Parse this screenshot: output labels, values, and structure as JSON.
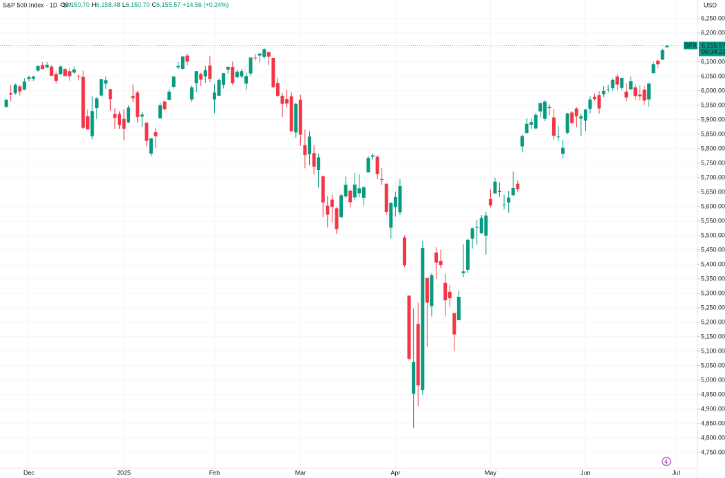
{
  "chart_data": {
    "type": "candlestick",
    "header": {
      "symbol": "S&P 500 Index · 1D · SP",
      "items": [
        {
          "key": "O",
          "value": "6,150.70"
        },
        {
          "key": "H",
          "value": "6,158.48"
        },
        {
          "key": "L",
          "value": "6,150.70"
        },
        {
          "key": "C",
          "value": "6,155.57"
        }
      ],
      "change": "+14.56 (+0.24%)"
    },
    "currency": "USD",
    "last_price": {
      "symbol": "SPX",
      "value": 6155.57,
      "label": "6,155.57",
      "countdown": "06:34:23"
    },
    "up_color": "#089981",
    "down_color": "#f23645",
    "grid": true,
    "ylim": [
      4695,
      6314
    ],
    "yticks": [
      {
        "value": 4750,
        "label": "4,750.00"
      },
      {
        "value": 4800,
        "label": "4,800.00"
      },
      {
        "value": 4850,
        "label": "4,850.00"
      },
      {
        "value": 4900,
        "label": "4,900.00"
      },
      {
        "value": 4950,
        "label": "4,950.00"
      },
      {
        "value": 5000,
        "label": "5,000.00"
      },
      {
        "value": 5050,
        "label": "5,050.00"
      },
      {
        "value": 5100,
        "label": "5,100.00"
      },
      {
        "value": 5150,
        "label": "5,150.00"
      },
      {
        "value": 5200,
        "label": "5,200.00"
      },
      {
        "value": 5250,
        "label": "5,250.00"
      },
      {
        "value": 5300,
        "label": "5,300.00"
      },
      {
        "value": 5350,
        "label": "5,350.00"
      },
      {
        "value": 5400,
        "label": "5,400.00"
      },
      {
        "value": 5450,
        "label": "5,450.00"
      },
      {
        "value": 5500,
        "label": "5,500.00"
      },
      {
        "value": 5550,
        "label": "5,550.00"
      },
      {
        "value": 5600,
        "label": "5,600.00"
      },
      {
        "value": 5650,
        "label": "5,650.00"
      },
      {
        "value": 5700,
        "label": "5,700.00"
      },
      {
        "value": 5750,
        "label": "5,750.00"
      },
      {
        "value": 5800,
        "label": "5,800.00"
      },
      {
        "value": 5850,
        "label": "5,850.00"
      },
      {
        "value": 5900,
        "label": "5,900.00"
      },
      {
        "value": 5950,
        "label": "5,950.00"
      },
      {
        "value": 6000,
        "label": "6,000.00"
      },
      {
        "value": 6050,
        "label": "6,050.00"
      },
      {
        "value": 6100,
        "label": "6,100.00"
      },
      {
        "value": 6150,
        "label": "6,150.00"
      },
      {
        "value": 6200,
        "label": "6,200.00"
      },
      {
        "value": 6250,
        "label": "6,250.00"
      }
    ],
    "categories": [
      null,
      null,
      null,
      null,
      null,
      "Dec",
      null,
      null,
      null,
      null,
      null,
      null,
      null,
      null,
      null,
      null,
      null,
      null,
      null,
      null,
      null,
      null,
      null,
      null,
      null,
      null,
      "2025",
      null,
      null,
      null,
      null,
      null,
      null,
      null,
      null,
      null,
      null,
      null,
      null,
      null,
      null,
      null,
      null,
      null,
      null,
      null,
      "Feb",
      null,
      null,
      null,
      null,
      null,
      null,
      null,
      null,
      null,
      null,
      null,
      null,
      null,
      null,
      null,
      null,
      null,
      null,
      "Mar",
      null,
      null,
      null,
      null,
      null,
      null,
      null,
      null,
      null,
      null,
      null,
      null,
      null,
      null,
      null,
      null,
      null,
      null,
      null,
      null,
      "Apr",
      null,
      null,
      null,
      null,
      null,
      null,
      null,
      null,
      null,
      null,
      null,
      null,
      null,
      null,
      null,
      null,
      null,
      null,
      null,
      null,
      "May",
      null,
      null,
      null,
      null,
      null,
      null,
      null,
      null,
      null,
      null,
      null,
      null,
      null,
      null,
      null,
      null,
      null,
      null,
      null,
      null,
      "Jun",
      null,
      null,
      null,
      null,
      null,
      null,
      null,
      null,
      null,
      null,
      null,
      null,
      null,
      null,
      null,
      null,
      null,
      null,
      null,
      "Jul"
    ],
    "open": [
      5944,
      5992,
      5992,
      6015,
      6004,
      6041,
      6042,
      6070,
      6089,
      6081,
      6084,
      6058,
      6057,
      6075,
      6068,
      6063,
      6052,
      6048,
      5912,
      5843,
      5940,
      5984,
      6025,
      6006,
      5920,
      5920,
      5903,
      5891,
      5982,
      5994,
      5911,
      5890,
      5783,
      5857,
      5905,
      5963,
      5969,
      6014,
      6081,
      6076,
      6122,
      5970,
      6026,
      6058,
      6050,
      6087,
      5970,
      5983,
      6021,
      6073,
      6083,
      6047,
      6050,
      6025,
      6060,
      6115,
      6122,
      6117,
      6134,
      6114,
      6027,
      5983,
      5971,
      5981,
      5856,
      5969,
      5812,
      5781,
      5785,
      5726,
      5705,
      5603,
      5624,
      5594,
      5563,
      5635,
      5655,
      5632,
      5646,
      5630,
      5718,
      5772,
      5772,
      5695,
      5679,
      5527,
      5598,
      5580,
      5493,
      5292,
      4953,
      5194,
      4966,
      5353,
      5256,
      5441,
      5412,
      5336,
      5305,
      5232,
      5207,
      5370,
      5381,
      5489,
      5529,
      5508,
      5499,
      5626,
      5645,
      5655,
      5605,
      5614,
      5639,
      5679,
      5808,
      5854,
      5883,
      5870,
      5929,
      5903,
      5945,
      5908,
      5842,
      5782,
      5855,
      5925,
      5939,
      5904,
      5897,
      5938,
      5979,
      5985,
      5988,
      6004,
      6009,
      6049,
      6010,
      5997,
      6005,
      6012,
      5987,
      6004,
      5970,
      6061,
      6104,
      6108,
      6150.7,
      null,
      null
    ],
    "high": [
      5972,
      6020,
      6025,
      6020,
      6044,
      6053,
      6052,
      6087,
      6100,
      6100,
      6089,
      6068,
      6090,
      6080,
      6078,
      6086,
      6058,
      6070,
      5935,
      5982,
      5978,
      6041,
      6049,
      6007,
      5940,
      5929,
      5936,
      5949,
      6022,
      6000,
      5927,
      5890,
      5837,
      5871,
      5960,
      5965,
      6006,
      6052,
      6100,
      6119,
      6128,
      6018,
      6069,
      6063,
      6086,
      6121,
      6023,
      6042,
      6062,
      6084,
      6101,
      6073,
      6076,
      6064,
      6116,
      6128,
      6129,
      6147,
      6135,
      6115,
      6044,
      5993,
      6003,
      5994,
      5959,
      5986,
      5865,
      5860,
      5812,
      5783,
      5705,
      5636,
      5642,
      5598,
      5645,
      5704,
      5660,
      5716,
      5711,
      5670,
      5775,
      5784,
      5777,
      5733,
      5679,
      5615,
      5651,
      5695,
      5500,
      5292,
      5247,
      5268,
      5481,
      5353,
      5371,
      5460,
      5451,
      5367,
      5328,
      5232,
      5309,
      5469,
      5489,
      5528,
      5553,
      5571,
      5581,
      5659,
      5700,
      5683,
      5641,
      5654,
      5721,
      5691,
      5848,
      5905,
      5906,
      5924,
      5958,
      5968,
      5954,
      5938,
      5878,
      5830,
      5924,
      5930,
      5944,
      5922,
      5937,
      5981,
      5990,
      5999,
      6016,
      6021,
      6043,
      6059,
      6045,
      6026,
      6050,
      6024,
      6019,
      6018,
      6028,
      6101,
      6108,
      6146,
      6158.48,
      null,
      null
    ],
    "low": [
      5944,
      5963,
      5986,
      5984,
      6003,
      6033,
      6034,
      6065,
      6075,
      6078,
      6052,
      6024,
      6057,
      6051,
      6035,
      6059,
      6036,
      5867,
      5866,
      5832,
      5902,
      5981,
      6007,
      5932,
      5869,
      5869,
      5829,
      5888,
      5960,
      5890,
      5874,
      5809,
      5773,
      5802,
      5905,
      5932,
      5969,
      6008,
      6076,
      6074,
      6088,
      5962,
      5995,
      6017,
      6028,
      6030,
      5923,
      5983,
      6008,
      6059,
      6020,
      6045,
      6044,
      6003,
      6051,
      6105,
      6099,
      6111,
      6088,
      6009,
      5978,
      5909,
      5942,
      5858,
      5837,
      5810,
      5732,
      5743,
      5711,
      5666,
      5564,
      5528,
      5546,
      5505,
      5563,
      5628,
      5597,
      5622,
      5632,
      5603,
      5718,
      5762,
      5695,
      5675,
      5572,
      5489,
      5565,
      5571,
      5390,
      5069,
      4835,
      4910,
      4950,
      5115,
      5220,
      5350,
      5387,
      5220,
      5255,
      5101,
      5207,
      5356,
      5371,
      5455,
      5468,
      5506,
      5434,
      5597,
      5645,
      5634,
      5590,
      5579,
      5638,
      5650,
      5787,
      5854,
      5868,
      5867,
      5907,
      5895,
      5915,
      5830,
      5826,
      5767,
      5849,
      5884,
      5874,
      5843,
      5862,
      5922,
      5966,
      5921,
      5978,
      5994,
      6000,
      6002,
      6003,
      5964,
      6005,
      5968,
      5967,
      5952,
      5944,
      6061,
      6078,
      6107,
      6150.7,
      null,
      null
    ],
    "close": [
      5969,
      5987,
      6021,
      5998,
      6032,
      6047,
      6049,
      6086,
      6075,
      6090,
      6052,
      6034,
      6084,
      6051,
      6051,
      6074,
      6050,
      5872,
      5867,
      5930,
      5974,
      6040,
      6037,
      5971,
      5907,
      5882,
      5869,
      5942,
      5975,
      5909,
      5918,
      5827,
      5836,
      5843,
      5950,
      5937,
      5997,
      6049,
      6086,
      6119,
      6101,
      6012,
      6068,
      6039,
      6071,
      6041,
      5994,
      6038,
      6061,
      6083,
      6026,
      6066,
      6068,
      6051,
      6115,
      6114,
      6129,
      6144,
      6118,
      6013,
      5983,
      5955,
      5956,
      5861,
      5955,
      5849,
      5778,
      5842,
      5738,
      5770,
      5614,
      5572,
      5599,
      5522,
      5639,
      5675,
      5615,
      5676,
      5663,
      5667,
      5768,
      5777,
      5712,
      5693,
      5581,
      5612,
      5633,
      5671,
      5397,
      5074,
      5062,
      4982,
      5457,
      5268,
      5363,
      5406,
      5397,
      5276,
      5283,
      5158,
      5288,
      5376,
      5485,
      5525,
      5529,
      5561,
      5569,
      5604,
      5686,
      5650,
      5607,
      5631,
      5664,
      5660,
      5844,
      5886,
      5892,
      5917,
      5958,
      5963,
      5940,
      5845,
      5842,
      5803,
      5922,
      5889,
      5912,
      5912,
      5936,
      5970,
      5971,
      5939,
      6000,
      6006,
      6038,
      6022,
      6045,
      5977,
      6033,
      5982,
      5981,
      5967,
      6025,
      6092,
      6092,
      6141,
      6155.57,
      null,
      null
    ]
  }
}
